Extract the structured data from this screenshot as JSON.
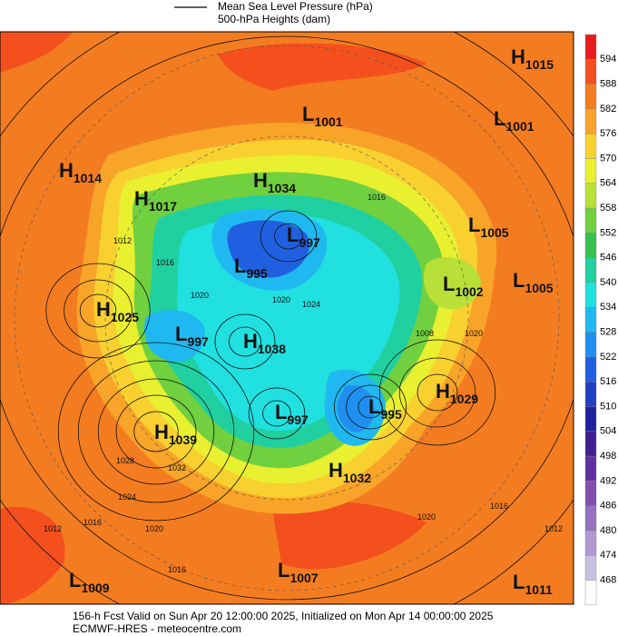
{
  "legend": {
    "items": [
      "Mean Sea Level Pressure (hPa)",
      "500-hPa Heights (dam)"
    ]
  },
  "colorbar": {
    "levels": [
      594,
      588,
      582,
      576,
      570,
      564,
      558,
      552,
      546,
      540,
      534,
      528,
      522,
      516,
      510,
      504,
      498,
      492,
      486,
      480,
      474,
      468
    ],
    "colors": [
      "#e81c1c",
      "#f4501e",
      "#f47c20",
      "#f8a428",
      "#f8d030",
      "#e8f030",
      "#b8e038",
      "#70d040",
      "#38c050",
      "#20d0a0",
      "#20e0e0",
      "#20b8f0",
      "#2090f0",
      "#2060e0",
      "#2040c0",
      "#2020a0",
      "#402090",
      "#6030a0",
      "#8050b0",
      "#9870c0",
      "#b098d0",
      "#c8c0e0",
      "#ffffff"
    ]
  },
  "centers": [
    {
      "type": "H",
      "value": 1015
    },
    {
      "type": "L",
      "value": 1001
    },
    {
      "type": "L",
      "value": 1001
    },
    {
      "type": "H",
      "value": 1014
    },
    {
      "type": "H",
      "value": 1034
    },
    {
      "type": "H",
      "value": 1017
    },
    {
      "type": "L",
      "value": 1005
    },
    {
      "type": "L",
      "value": 997
    },
    {
      "type": "L",
      "value": 995
    },
    {
      "type": "L",
      "value": 1005
    },
    {
      "type": "L",
      "value": 1002
    },
    {
      "type": "H",
      "value": 1025
    },
    {
      "type": "L",
      "value": 997
    },
    {
      "type": "H",
      "value": 1038
    },
    {
      "type": "H",
      "value": 1029
    },
    {
      "type": "L",
      "value": 995
    },
    {
      "type": "L",
      "value": 997
    },
    {
      "type": "H",
      "value": 1039
    },
    {
      "type": "H",
      "value": 1032
    },
    {
      "type": "L",
      "value": 1009
    },
    {
      "type": "L",
      "value": 1007
    },
    {
      "type": "L",
      "value": 1011
    }
  ],
  "contour_labels": [
    1016,
    1012,
    1016,
    1020,
    1024,
    1020,
    1008,
    1020,
    1028,
    1032,
    1024,
    1020,
    1016,
    1012,
    1016,
    1020,
    1016,
    1012
  ],
  "footer": {
    "line1": "156-h Fcst Valid on Sun Apr 20 12:00:00 2025, Initialized on Mon Apr 14 00:00:00 2025",
    "line2": "ECMWF-HRES  - meteocentre.com"
  }
}
